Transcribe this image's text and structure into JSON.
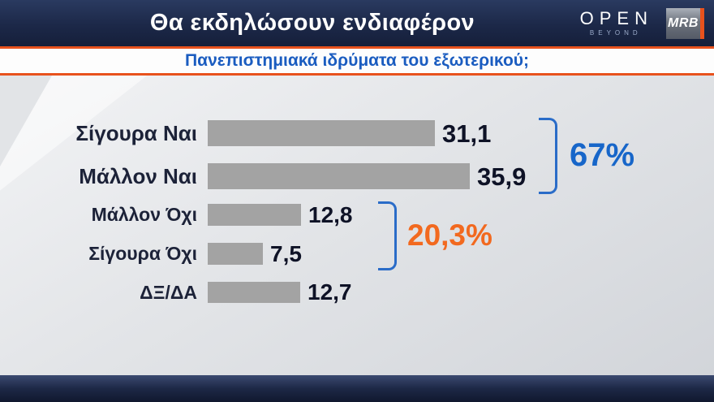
{
  "header": {
    "title": "Θα εκδηλώσουν ενδιαφέρον",
    "open_logo": {
      "name": "OPEN",
      "tagline": "BEYOND"
    },
    "mrb_logo": {
      "name": "MRB"
    }
  },
  "subtitle": {
    "text": "Πανεπιστημιακά ιδρύματα του εξωτερικού;"
  },
  "chart_data": {
    "type": "bar",
    "orientation": "horizontal",
    "title": "Θα εκδηλώσουν ενδιαφέρον",
    "question": "Πανεπιστημιακά ιδρύματα του εξωτερικού;",
    "categories": [
      "Σίγουρα Ναι",
      "Μάλλον Ναι",
      "Μάλλον Όχι",
      "Σίγουρα Όχι",
      "ΔΞ/ΔΑ"
    ],
    "values": [
      31.1,
      35.9,
      12.8,
      7.5,
      12.7
    ],
    "value_labels": [
      "31,1",
      "35,9",
      "12,8",
      "7,5",
      "12,7"
    ],
    "xlim": [
      0,
      40
    ],
    "grid": false,
    "legend": "none",
    "bar_color": "#a3a3a3",
    "groups": [
      {
        "label": "67%",
        "rows": [
          0,
          1
        ],
        "color": "#1766c9"
      },
      {
        "label": "20,3%",
        "rows": [
          2,
          3
        ],
        "color": "#f2691f"
      }
    ]
  },
  "colors": {
    "header_bg": "#1c2848",
    "accent_orange": "#e8521d",
    "subtitle_blue": "#1a5cc0",
    "bracket_blue": "#2a6cc8",
    "value_text": "#0e1226"
  }
}
